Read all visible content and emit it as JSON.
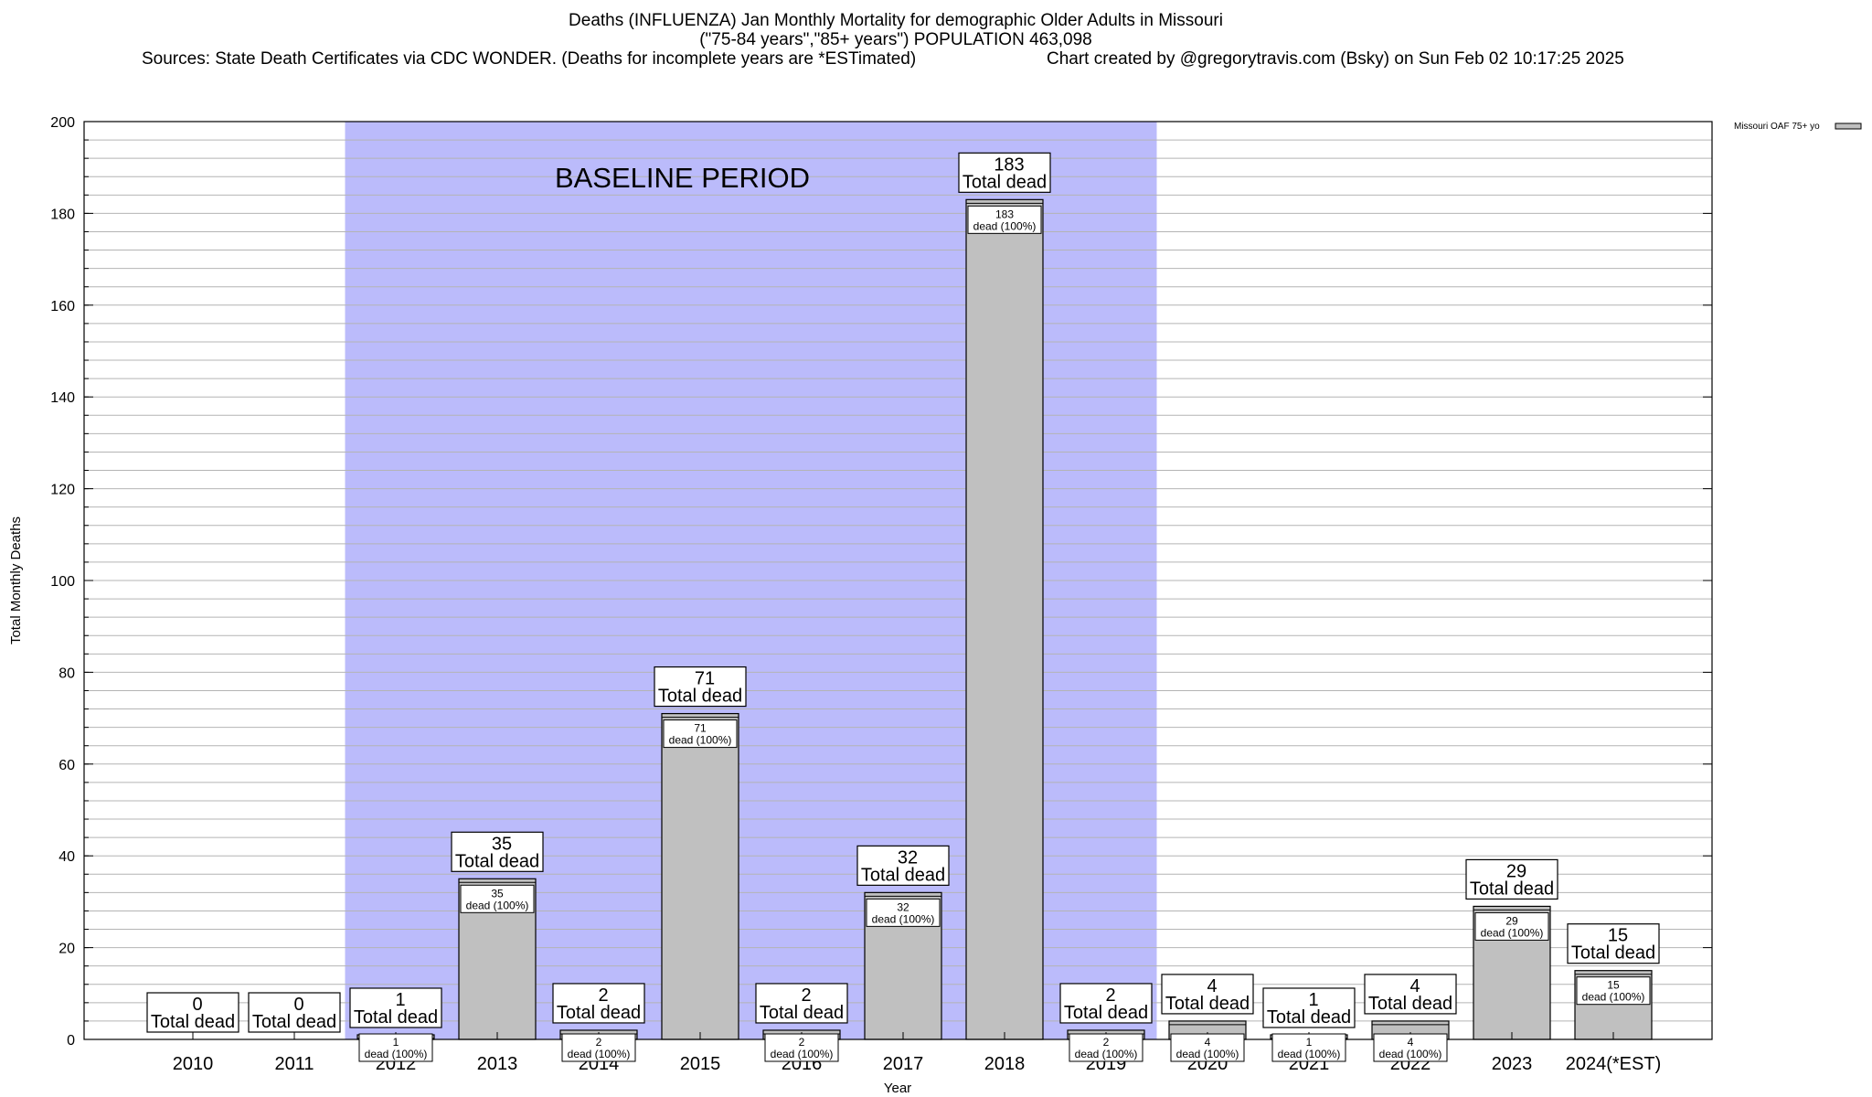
{
  "header": {
    "title_line1": "Deaths (INFLUENZA) Jan Monthly Mortality for demographic Older Adults in Missouri",
    "title_line2": "(\"75-84 years\",\"85+ years\") POPULATION 463,098",
    "sources": "Sources: State Death Certificates via CDC WONDER. (Deaths for incomplete years are *ESTimated)",
    "credit": "Chart created by @gregorytravis.com (Bsky) on Sun Feb 02 10:17:25 2025"
  },
  "colors": {
    "bar_fill": "#c0c0c0",
    "baseline_fill": "#bbbbfb",
    "grid": "#b4b4b4"
  },
  "chart_data": {
    "type": "bar",
    "title": "Deaths (INFLUENZA) Jan Monthly Mortality for demographic Older Adults in Missouri",
    "xlabel": "Year",
    "ylabel": "Total Monthly Deaths",
    "ylim": [
      0,
      200
    ],
    "yticks": [
      0,
      20,
      40,
      60,
      80,
      100,
      120,
      140,
      160,
      180,
      200
    ],
    "grid": true,
    "legend": {
      "position": "top-right",
      "entries": [
        "Missouri OAF 75+ yo"
      ]
    },
    "categories": [
      "2010",
      "2011",
      "2012",
      "2013",
      "2014",
      "2015",
      "2016",
      "2017",
      "2018",
      "2019",
      "2020",
      "2021",
      "2022",
      "2023",
      "2024(*EST)"
    ],
    "series": [
      {
        "name": "Missouri OAF 75+ yo",
        "values": [
          0,
          0,
          1,
          35,
          2,
          71,
          2,
          32,
          183,
          2,
          4,
          1,
          4,
          29,
          15
        ]
      }
    ],
    "total_label": "Total dead",
    "inner_label": "dead (100%)",
    "baseline_period": {
      "label": "BASELINE PERIOD",
      "start": "2012",
      "end": "2019"
    }
  }
}
